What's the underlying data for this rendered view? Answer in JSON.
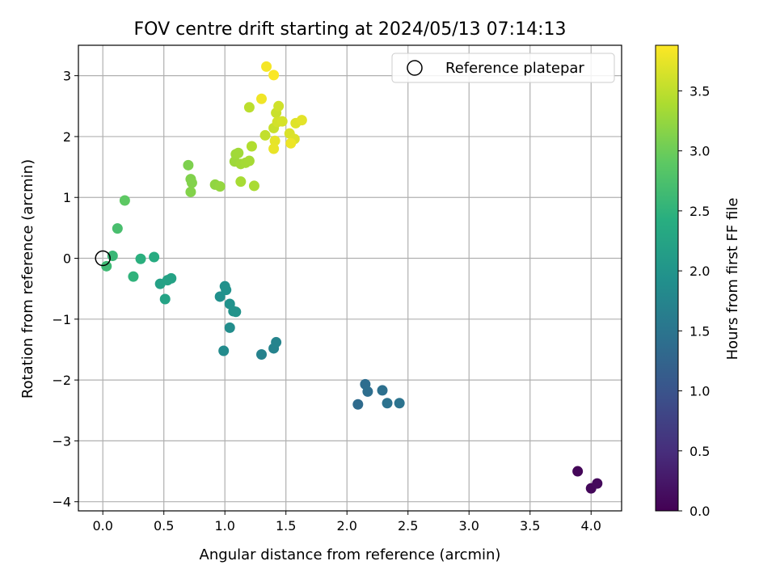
{
  "chart_data": {
    "type": "scatter",
    "title": "FOV centre drift starting at 2024/05/13 07:14:13",
    "xlabel": "Angular distance from reference (arcmin)",
    "ylabel": "Rotation from reference (arcmin)",
    "xlim": [
      -0.2,
      4.25
    ],
    "ylim": [
      -4.15,
      3.5
    ],
    "x_ticks": [
      "0.0",
      "0.5",
      "1.0",
      "1.5",
      "2.0",
      "2.5",
      "3.0",
      "3.5",
      "4.0"
    ],
    "y_ticks": [
      "3",
      "2",
      "1",
      "0",
      "−1",
      "−2",
      "−3",
      "−4"
    ],
    "grid": true,
    "legend": {
      "placement": "top-right",
      "entries": [
        "Reference platepar"
      ]
    },
    "colorbar": {
      "label": "Hours from first FF file",
      "colormap": "viridis",
      "range": [
        0.0,
        3.88
      ],
      "ticks": [
        "0.0",
        "0.5",
        "1.0",
        "1.5",
        "2.0",
        "2.5",
        "3.0",
        "3.5"
      ]
    },
    "reference_point": {
      "x": 0.0,
      "y": 0.0
    },
    "points": [
      {
        "x": 3.89,
        "y": -3.5,
        "hours": 0.05
      },
      {
        "x": 4.0,
        "y": -3.78,
        "hours": 0.08
      },
      {
        "x": 4.05,
        "y": -3.7,
        "hours": 0.1
      },
      {
        "x": 2.09,
        "y": -2.4,
        "hours": 1.35
      },
      {
        "x": 2.15,
        "y": -2.07,
        "hours": 1.38
      },
      {
        "x": 2.17,
        "y": -2.19,
        "hours": 1.4
      },
      {
        "x": 2.29,
        "y": -2.17,
        "hours": 1.42
      },
      {
        "x": 2.33,
        "y": -2.38,
        "hours": 1.45
      },
      {
        "x": 2.43,
        "y": -2.38,
        "hours": 1.47
      },
      {
        "x": 1.3,
        "y": -1.58,
        "hours": 1.7
      },
      {
        "x": 1.4,
        "y": -1.48,
        "hours": 1.72
      },
      {
        "x": 1.42,
        "y": -1.38,
        "hours": 1.74
      },
      {
        "x": 0.99,
        "y": -1.52,
        "hours": 1.85
      },
      {
        "x": 1.04,
        "y": -1.14,
        "hours": 1.87
      },
      {
        "x": 0.96,
        "y": -0.63,
        "hours": 1.92
      },
      {
        "x": 1.0,
        "y": -0.46,
        "hours": 1.94
      },
      {
        "x": 1.01,
        "y": -0.52,
        "hours": 1.95
      },
      {
        "x": 1.04,
        "y": -0.75,
        "hours": 1.96
      },
      {
        "x": 1.07,
        "y": -0.87,
        "hours": 1.97
      },
      {
        "x": 1.09,
        "y": -0.88,
        "hours": 1.98
      },
      {
        "x": 0.47,
        "y": -0.42,
        "hours": 2.2
      },
      {
        "x": 0.53,
        "y": -0.36,
        "hours": 2.22
      },
      {
        "x": 0.56,
        "y": -0.33,
        "hours": 2.23
      },
      {
        "x": 0.51,
        "y": -0.67,
        "hours": 2.24
      },
      {
        "x": 0.42,
        "y": 0.02,
        "hours": 2.38
      },
      {
        "x": 0.31,
        "y": -0.01,
        "hours": 2.45
      },
      {
        "x": 0.25,
        "y": -0.3,
        "hours": 2.5
      },
      {
        "x": 0.08,
        "y": 0.04,
        "hours": 2.58
      },
      {
        "x": 0.03,
        "y": -0.13,
        "hours": 2.62
      },
      {
        "x": 0.12,
        "y": 0.49,
        "hours": 2.72
      },
      {
        "x": 0.18,
        "y": 0.95,
        "hours": 2.9
      },
      {
        "x": 0.7,
        "y": 1.53,
        "hours": 3.1
      },
      {
        "x": 0.72,
        "y": 1.3,
        "hours": 3.12
      },
      {
        "x": 0.73,
        "y": 1.24,
        "hours": 3.13
      },
      {
        "x": 0.72,
        "y": 1.09,
        "hours": 3.14
      },
      {
        "x": 0.92,
        "y": 1.21,
        "hours": 3.22
      },
      {
        "x": 0.96,
        "y": 1.18,
        "hours": 3.24
      },
      {
        "x": 1.08,
        "y": 1.59,
        "hours": 3.3
      },
      {
        "x": 1.09,
        "y": 1.71,
        "hours": 3.31
      },
      {
        "x": 1.11,
        "y": 1.73,
        "hours": 3.32
      },
      {
        "x": 1.13,
        "y": 1.55,
        "hours": 3.33
      },
      {
        "x": 1.17,
        "y": 1.57,
        "hours": 3.34
      },
      {
        "x": 1.2,
        "y": 1.6,
        "hours": 3.35
      },
      {
        "x": 1.13,
        "y": 1.26,
        "hours": 3.36
      },
      {
        "x": 1.24,
        "y": 1.19,
        "hours": 3.37
      },
      {
        "x": 1.22,
        "y": 1.84,
        "hours": 3.42
      },
      {
        "x": 1.2,
        "y": 2.48,
        "hours": 3.48
      },
      {
        "x": 1.33,
        "y": 2.02,
        "hours": 3.52
      },
      {
        "x": 1.4,
        "y": 2.14,
        "hours": 3.55
      },
      {
        "x": 1.42,
        "y": 2.39,
        "hours": 3.57
      },
      {
        "x": 1.44,
        "y": 2.5,
        "hours": 3.6
      },
      {
        "x": 1.43,
        "y": 2.24,
        "hours": 3.62
      },
      {
        "x": 1.47,
        "y": 2.25,
        "hours": 3.64
      },
      {
        "x": 1.53,
        "y": 2.05,
        "hours": 3.66
      },
      {
        "x": 1.57,
        "y": 1.96,
        "hours": 3.68
      },
      {
        "x": 1.58,
        "y": 2.22,
        "hours": 3.7
      },
      {
        "x": 1.63,
        "y": 2.27,
        "hours": 3.72
      },
      {
        "x": 1.41,
        "y": 1.93,
        "hours": 3.74
      },
      {
        "x": 1.4,
        "y": 1.8,
        "hours": 3.76
      },
      {
        "x": 1.54,
        "y": 1.89,
        "hours": 3.78
      },
      {
        "x": 1.3,
        "y": 2.62,
        "hours": 3.8
      },
      {
        "x": 1.34,
        "y": 3.15,
        "hours": 3.83
      },
      {
        "x": 1.4,
        "y": 3.01,
        "hours": 3.86
      }
    ]
  }
}
